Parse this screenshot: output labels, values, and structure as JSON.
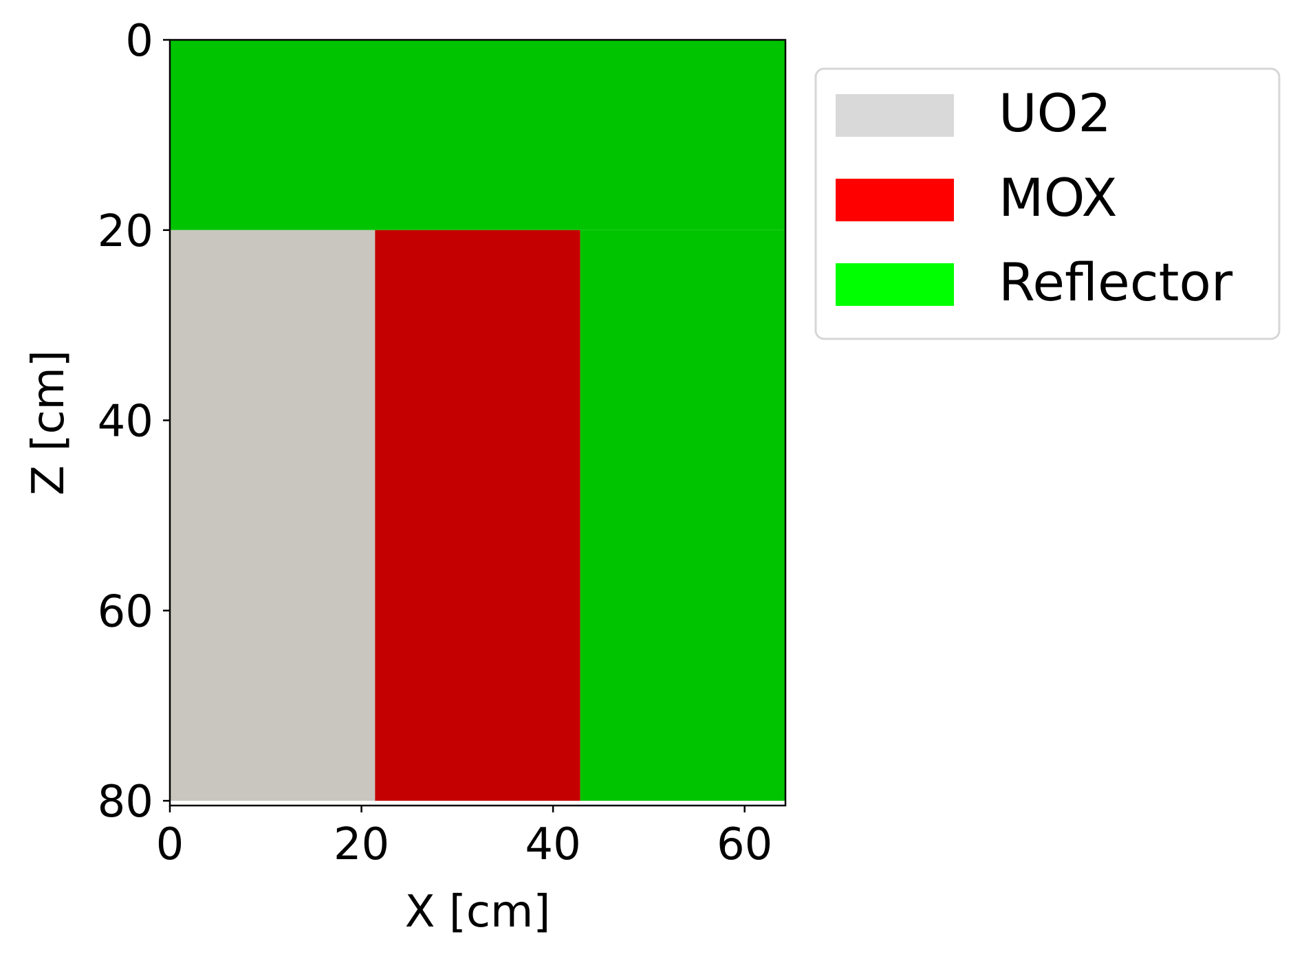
{
  "chart_data": {
    "type": "heatmap",
    "title": "",
    "xlabel": "X [cm]",
    "ylabel": "Z [cm]",
    "xlim": [
      0,
      64.26
    ],
    "ylim": [
      80.5,
      0
    ],
    "y_axis_inverted": true,
    "x_ticks": [
      0,
      20,
      40,
      60
    ],
    "y_ticks": [
      0,
      20,
      40,
      60,
      80
    ],
    "grid": false,
    "legend": {
      "placement": "outside-right-top"
    },
    "materials": [
      {
        "name": "UO2",
        "legend_color": "#d9d9d9"
      },
      {
        "name": "MOX",
        "legend_color": "#ff0000"
      },
      {
        "name": "Reflector",
        "legend_color": "#00ff00"
      }
    ],
    "regions": [
      {
        "material": "Reflector",
        "x": [
          0,
          64.26
        ],
        "z": [
          0,
          20
        ],
        "color": "#00c400"
      },
      {
        "material": "UO2",
        "x": [
          0,
          21.42
        ],
        "z": [
          20,
          80
        ],
        "color": "#c9c6bf"
      },
      {
        "material": "MOX",
        "x": [
          21.42,
          42.84
        ],
        "z": [
          20,
          80
        ],
        "color": "#c40000"
      },
      {
        "material": "Reflector",
        "x": [
          42.84,
          64.26
        ],
        "z": [
          20,
          80
        ],
        "color": "#00c400"
      }
    ]
  }
}
